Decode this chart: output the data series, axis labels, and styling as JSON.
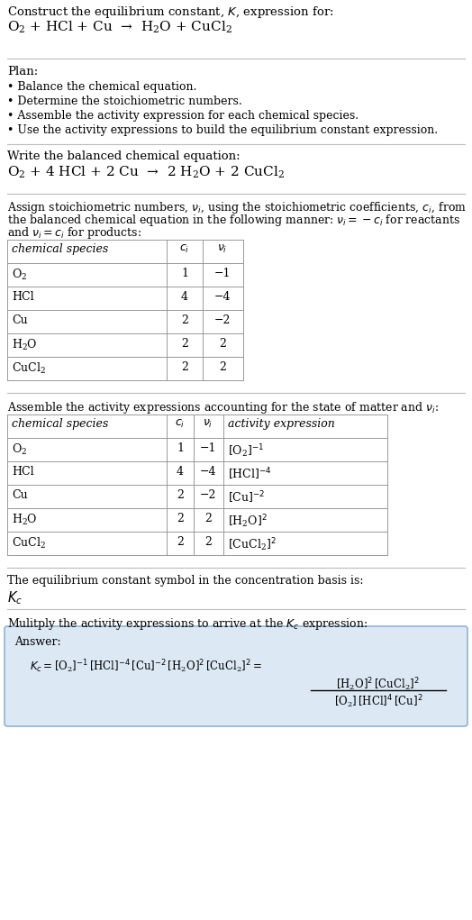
{
  "bg_color": "#ffffff",
  "text_color": "#000000",
  "title_line1": "Construct the equilibrium constant, $K$, expression for:",
  "title_line2": "$\\mathregular{O_2}$ + HCl + Cu  →  $\\mathregular{H_2O}$ + $\\mathregular{CuCl_2}$",
  "plan_header": "Plan:",
  "plan_items": [
    "• Balance the chemical equation.",
    "• Determine the stoichiometric numbers.",
    "• Assemble the activity expression for each chemical species.",
    "• Use the activity expressions to build the equilibrium constant expression."
  ],
  "balanced_header": "Write the balanced chemical equation:",
  "balanced_eq": "$\\mathregular{O_2}$ + 4 HCl + 2 Cu  →  2 $\\mathregular{H_2O}$ + 2 $\\mathregular{CuCl_2}$",
  "stoich_text1": "Assign stoichiometric numbers, $\\nu_i$, using the stoichiometric coefficients, $c_i$, from",
  "stoich_text2": "the balanced chemical equation in the following manner: $\\nu_i = -c_i$ for reactants",
  "stoich_text3": "and $\\nu_i = c_i$ for products:",
  "table1_headers": [
    "chemical species",
    "$c_i$",
    "$\\nu_i$"
  ],
  "table1_rows": [
    [
      "$\\mathregular{O_2}$",
      "1",
      "−1"
    ],
    [
      "HCl",
      "4",
      "−4"
    ],
    [
      "Cu",
      "2",
      "−2"
    ],
    [
      "$\\mathregular{H_2O}$",
      "2",
      "2"
    ],
    [
      "$\\mathregular{CuCl_2}$",
      "2",
      "2"
    ]
  ],
  "activity_header": "Assemble the activity expressions accounting for the state of matter and $\\nu_i$:",
  "table2_headers": [
    "chemical species",
    "$c_i$",
    "$\\nu_i$",
    "activity expression"
  ],
  "table2_rows": [
    [
      "$\\mathregular{O_2}$",
      "1",
      "−1",
      "$[\\mathregular{O_2}]^{-1}$"
    ],
    [
      "HCl",
      "4",
      "−4",
      "$[\\mathregular{HCl}]^{-4}$"
    ],
    [
      "Cu",
      "2",
      "−2",
      "$[\\mathregular{Cu}]^{-2}$"
    ],
    [
      "$\\mathregular{H_2O}$",
      "2",
      "2",
      "$[\\mathregular{H_2O}]^2$"
    ],
    [
      "$\\mathregular{CuCl_2}$",
      "2",
      "2",
      "$[\\mathregular{CuCl_2}]^2$"
    ]
  ],
  "kc_header": "The equilibrium constant symbol in the concentration basis is:",
  "kc_symbol": "$K_c$",
  "multiply_header": "Mulitply the activity expressions to arrive at the $K_c$ expression:",
  "answer_box_color": "#dce9f5",
  "answer_box_border": "#90b4d4",
  "answer_label": "Answer:",
  "answer_line1": "$K_c = [\\mathregular{O_2}]^{-1}\\,[\\mathregular{HCl}]^{-4}\\,[\\mathregular{Cu}]^{-2}\\,[\\mathregular{H_2O}]^2\\,[\\mathregular{CuCl_2}]^2 = $",
  "answer_frac_num": "$[\\mathregular{H_2O}]^2\\,[\\mathregular{CuCl_2}]^2$",
  "answer_frac_den": "$[\\mathregular{O_2}]\\,[\\mathregular{HCl}]^4\\,[\\mathregular{Cu}]^2$",
  "divider_color": "#bbbbbb",
  "table_line_color": "#999999"
}
